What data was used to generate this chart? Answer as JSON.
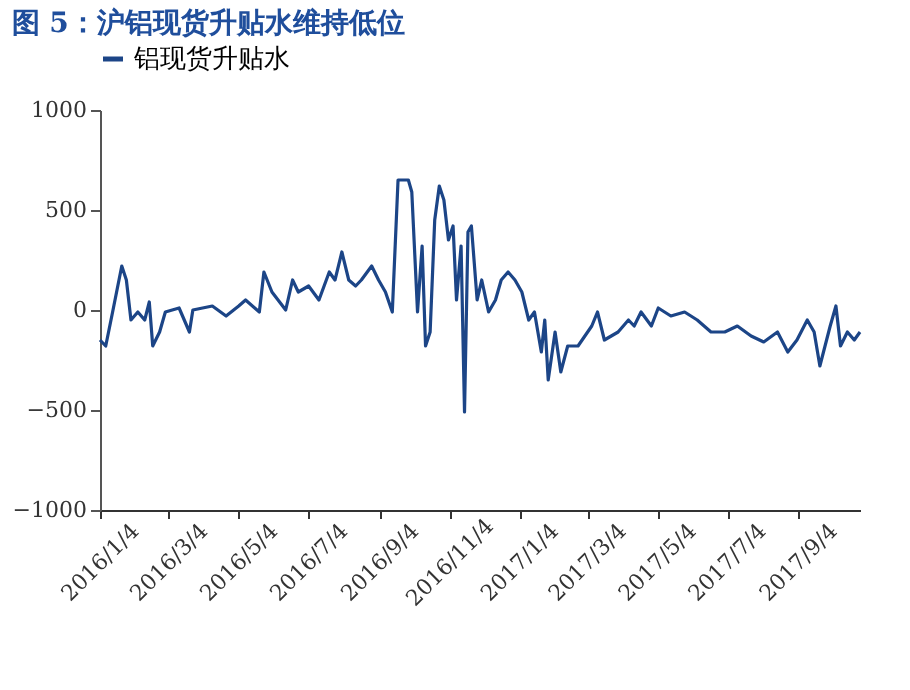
{
  "chart_data": {
    "type": "line",
    "title": "图 5：沪铝现货升贴水维持低位",
    "x": [
      "2016-01-04",
      "2016-01-09",
      "2016-01-15",
      "2016-01-23",
      "2016-01-27",
      "2016-01-31",
      "2016-02-06",
      "2016-02-12",
      "2016-02-16",
      "2016-02-19",
      "2016-02-25",
      "2016-03-01",
      "2016-03-13",
      "2016-03-22",
      "2016-03-25",
      "2016-04-11",
      "2016-04-23",
      "2016-05-04",
      "2016-05-10",
      "2016-05-22",
      "2016-05-26",
      "2016-06-02",
      "2016-06-14",
      "2016-06-20",
      "2016-06-25",
      "2016-07-04",
      "2016-07-13",
      "2016-07-22",
      "2016-07-27",
      "2016-08-02",
      "2016-08-08",
      "2016-08-14",
      "2016-08-19",
      "2016-08-28",
      "2016-09-03",
      "2016-09-09",
      "2016-09-15",
      "2016-09-20",
      "2016-09-29",
      "2016-10-02",
      "2016-10-07",
      "2016-10-11",
      "2016-10-14",
      "2016-10-18",
      "2016-10-22",
      "2016-10-26",
      "2016-10-30",
      "2016-11-03",
      "2016-11-07",
      "2016-11-10",
      "2016-11-14",
      "2016-11-17",
      "2016-11-20",
      "2016-11-23",
      "2016-11-28",
      "2016-12-02",
      "2016-12-08",
      "2016-12-14",
      "2016-12-19",
      "2016-12-25",
      "2016-12-31",
      "2017-01-06",
      "2017-01-12",
      "2017-01-17",
      "2017-01-23",
      "2017-01-26",
      "2017-01-29",
      "2017-02-04",
      "2017-02-09",
      "2017-02-15",
      "2017-02-24",
      "2017-03-08",
      "2017-03-13",
      "2017-03-19",
      "2017-03-31",
      "2017-04-09",
      "2017-04-14",
      "2017-04-20",
      "2017-04-29",
      "2017-05-05",
      "2017-05-16",
      "2017-05-28",
      "2017-06-08",
      "2017-06-20",
      "2017-07-02",
      "2017-07-13",
      "2017-07-25",
      "2017-08-05",
      "2017-08-17",
      "2017-08-26",
      "2017-09-03",
      "2017-09-12",
      "2017-09-18",
      "2017-09-23",
      "2017-10-02",
      "2017-10-07",
      "2017-10-11",
      "2017-10-17",
      "2017-10-23",
      "2017-10-28"
    ],
    "series": [
      {
        "name": "铝现货升贴水",
        "color": "#1c4587",
        "values": [
          -150,
          -180,
          -10,
          220,
          150,
          -50,
          -10,
          -50,
          40,
          -180,
          -110,
          -10,
          10,
          -110,
          0,
          20,
          -30,
          20,
          50,
          -10,
          190,
          90,
          0,
          150,
          90,
          120,
          50,
          190,
          150,
          290,
          150,
          120,
          150,
          220,
          150,
          90,
          -10,
          650,
          650,
          590,
          -10,
          320,
          -180,
          -110,
          450,
          620,
          550,
          350,
          420,
          50,
          320,
          -510,
          390,
          420,
          50,
          150,
          -10,
          50,
          150,
          190,
          150,
          90,
          -50,
          -10,
          -210,
          -50,
          -350,
          -110,
          -310,
          -180,
          -180,
          -80,
          -10,
          -150,
          -110,
          -50,
          -80,
          -10,
          -80,
          10,
          -30,
          -10,
          -50,
          -110,
          -110,
          -80,
          -130,
          -160,
          -110,
          -210,
          -150,
          -50,
          -110,
          -280,
          -80,
          20,
          -180,
          -110,
          -150,
          -110
        ]
      }
    ],
    "xlim": [
      "2016-01-04",
      "2017-10-28"
    ],
    "xticks": [
      {
        "value": "2016-01-04",
        "label": "2016/1/4"
      },
      {
        "value": "2016-03-04",
        "label": "2016/3/4"
      },
      {
        "value": "2016-05-04",
        "label": "2016/5/4"
      },
      {
        "value": "2016-07-04",
        "label": "2016/7/4"
      },
      {
        "value": "2016-09-04",
        "label": "2016/9/4"
      },
      {
        "value": "2016-11-04",
        "label": "2016/11/4"
      },
      {
        "value": "2017-01-04",
        "label": "2017/1/4"
      },
      {
        "value": "2017-03-04",
        "label": "2017/3/4"
      },
      {
        "value": "2017-05-04",
        "label": "2017/5/4"
      },
      {
        "value": "2017-07-04",
        "label": "2017/7/4"
      },
      {
        "value": "2017-09-04",
        "label": "2017/9/4"
      }
    ],
    "ylim": [
      -1000,
      1000
    ],
    "yticks": [
      -1000,
      -500,
      0,
      500,
      1000
    ],
    "grid": false,
    "legend": "top",
    "line_style": "solid",
    "marker": "none"
  }
}
